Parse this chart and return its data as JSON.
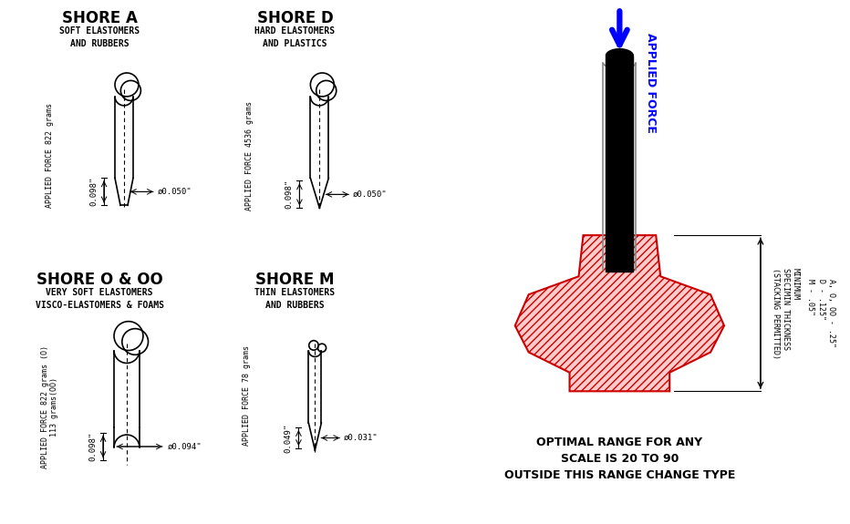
{
  "bg_color": "#ffffff",
  "shore_A": {
    "title": "SHORE A",
    "subtitle1": "SOFT ELASTOMERS",
    "subtitle2": "AND RUBBERS",
    "force_label": "APPLIED FORCE 822 grams",
    "dim1": "0.098\"",
    "dim2": "ø0.050\""
  },
  "shore_D": {
    "title": "SHORE D",
    "subtitle1": "HARD ELASTOMERS",
    "subtitle2": "AND PLASTICS",
    "force_label": "APPLIED FORCE 4536 grams",
    "dim1": "0.098\"",
    "dim2": "ø0.050\""
  },
  "shore_OO": {
    "title": "SHORE O & OO",
    "subtitle1": "VERY SOFT ELASTOMERS",
    "subtitle2": "VISCO-ELASTOMERS & FOAMS",
    "force_label1": "APPLIED FORCE 822 grams (O)",
    "force_label2": "113 grams(OO)",
    "dim1": "0.098\"",
    "dim2": "ø0.094\""
  },
  "shore_M": {
    "title": "SHORE M",
    "subtitle1": "THIN ELASTOMERS",
    "subtitle2": "AND RUBBERS",
    "force_label": "APPLIED FORCE 78 grams",
    "dim1": "0.049\"",
    "dim2": "ø0.031\""
  },
  "right_panel": {
    "force_label": "APPLIED FORCE",
    "thickness_label": "MINIMUM\nSPECIMIN THICKNESS\n(STACKING PERMITTED)",
    "size_label": "A, O, OO - .25\"\nD - .125\"\nM - .05\"",
    "bottom_text": "OPTIMAL RANGE FOR ANY\nSCALE IS 20 TO 90\nOUTSIDE THIS RANGE CHANGE TYPE"
  }
}
